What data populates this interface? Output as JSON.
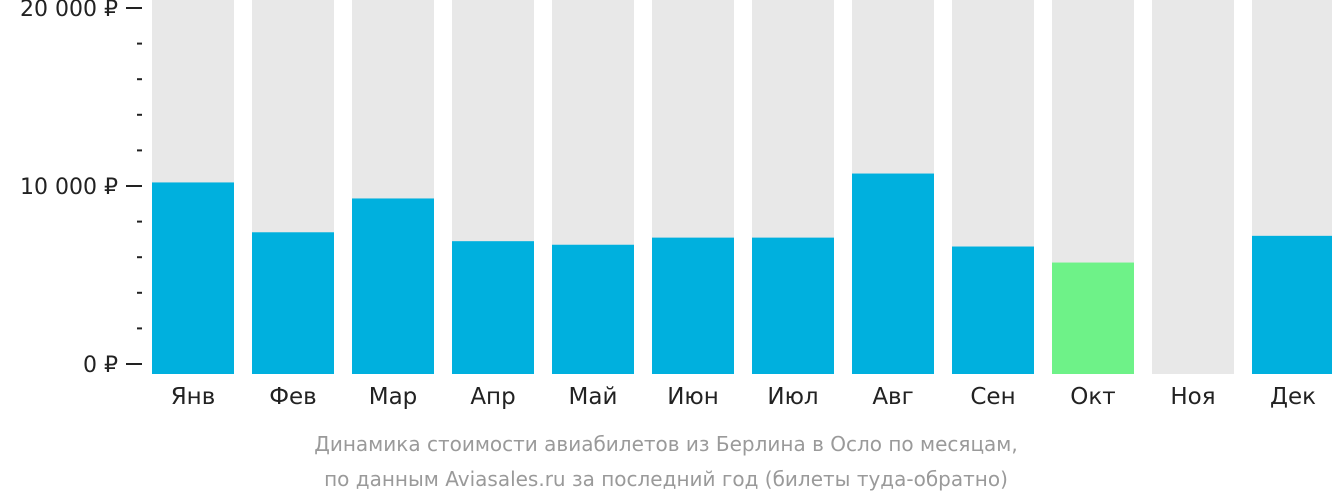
{
  "chart_data": {
    "type": "bar",
    "categories": [
      "Янв",
      "Фев",
      "Мар",
      "Апр",
      "Май",
      "Июн",
      "Июл",
      "Авг",
      "Сен",
      "Окт",
      "Ноя",
      "Дек"
    ],
    "values": [
      10200,
      7400,
      9300,
      6900,
      6700,
      7100,
      7100,
      10700,
      6600,
      5700,
      null,
      7200
    ],
    "ylim": [
      0,
      20000
    ],
    "y_major_ticks": [
      {
        "value": 0,
        "label": "0 ₽"
      },
      {
        "value": 10000,
        "label": "10 000 ₽"
      },
      {
        "value": 20000,
        "label": "20 000 ₽"
      }
    ],
    "y_minor_step": 2000,
    "highlight_index": 9,
    "colors": {
      "bar": "#00b0de",
      "highlight": "#6ef288",
      "background_column": "#e8e8e8",
      "axis_text": "#222222",
      "caption": "#9a9a9a"
    }
  },
  "caption": {
    "line1": "Динамика стоимости авиабилетов из Берлина в Осло по месяцам,",
    "line2": "по данным Aviasales.ru за последний год (билеты туда-обратно)"
  }
}
